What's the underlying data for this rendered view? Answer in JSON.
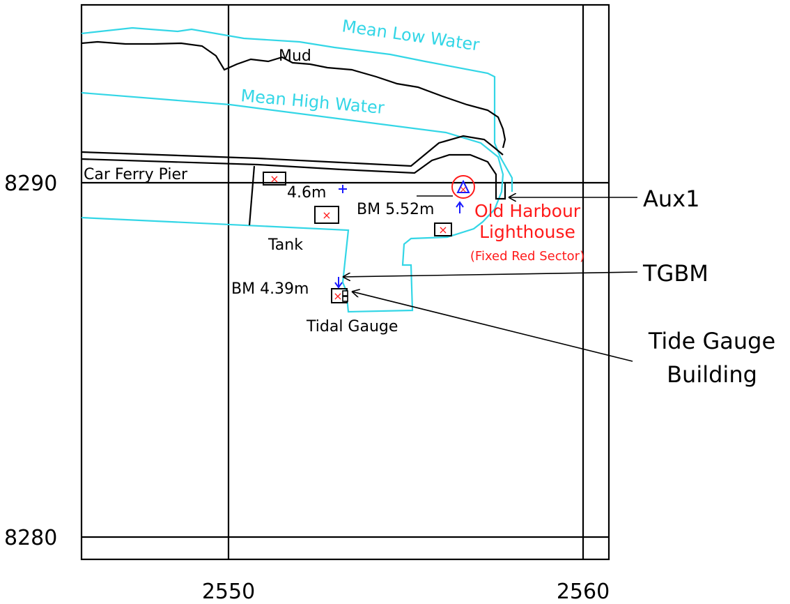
{
  "map": {
    "axes": {
      "x_ticks": [
        "2550",
        "2560"
      ],
      "y_ticks": [
        "8290",
        "8280"
      ]
    },
    "labels": {
      "mean_low_water": "Mean Low Water",
      "mean_high_water": "Mean High Water",
      "mud": "Mud",
      "car_ferry_pier": "Car Ferry Pier",
      "tank": "Tank",
      "tidal_gauge": "Tidal Gauge",
      "height_46": "4.6m",
      "bm_552": "BM 5.52m",
      "bm_439": "BM 4.39m",
      "lighthouse_line1": "Old Harbour",
      "lighthouse_line2": "Lighthouse",
      "lighthouse_sector": "(Fixed Red Sector)"
    },
    "callouts": {
      "aux1": "Aux1",
      "tgbm": "TGBM",
      "tide_gauge_line1": "Tide Gauge",
      "tide_gauge_line2": "Building"
    },
    "colors": {
      "water_line": "#33d6e6",
      "coast_line": "#000000",
      "marker_red": "#ff1a1a",
      "marker_blue": "#1a1aff"
    }
  }
}
